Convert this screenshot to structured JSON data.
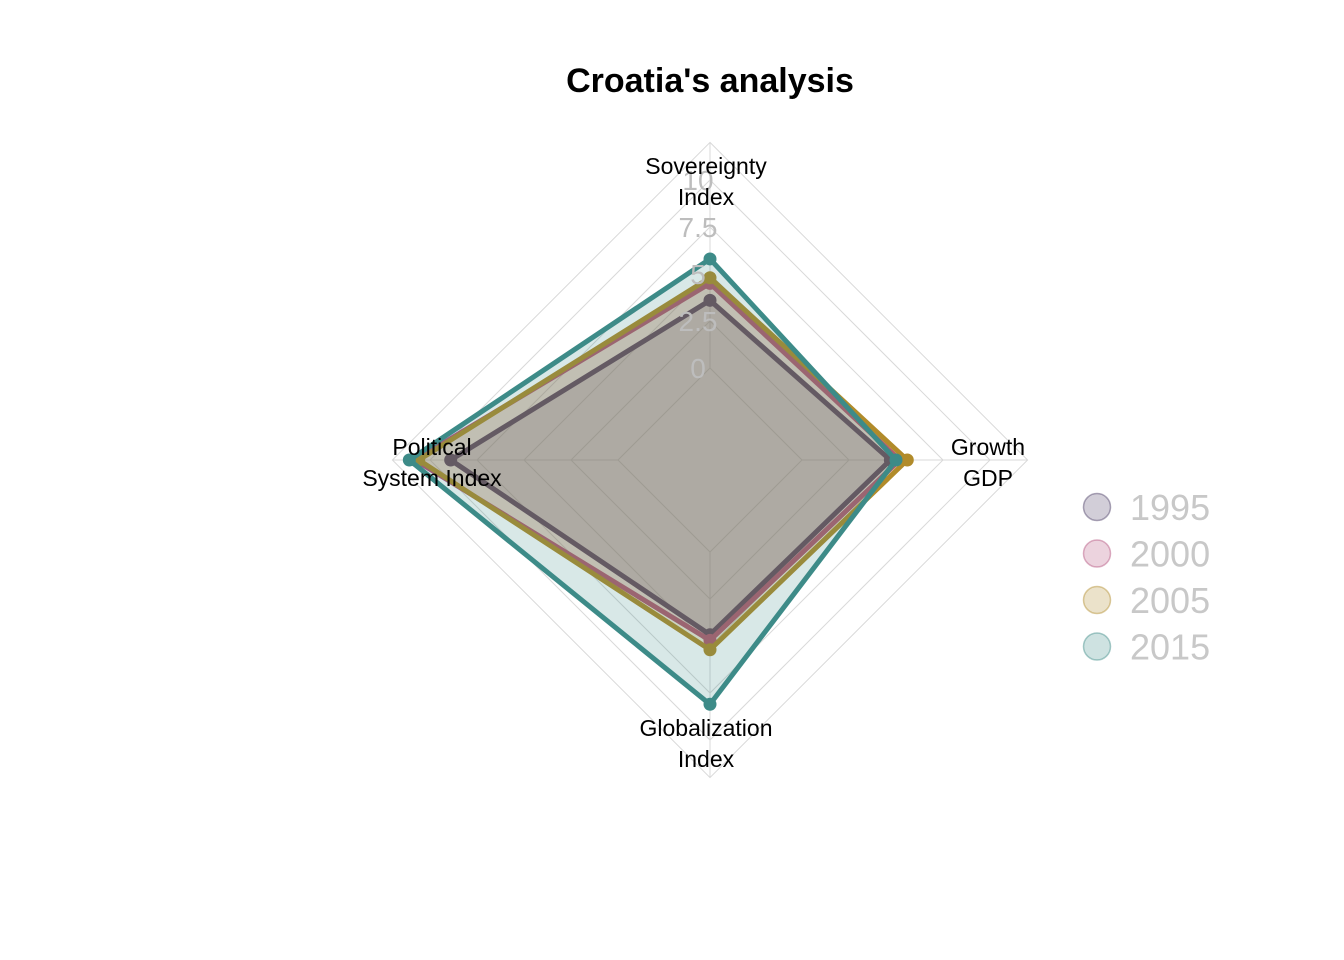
{
  "chart_data": {
    "type": "radar",
    "title": "Croatia's analysis",
    "axes": [
      {
        "lines": [
          "Sovereignty",
          "Index"
        ]
      },
      {
        "lines": [
          "Growth",
          "GDP"
        ]
      },
      {
        "lines": [
          "Globalization",
          "Index"
        ]
      },
      {
        "lines": [
          "Political",
          "System Index"
        ]
      }
    ],
    "rlim": [
      0,
      10
    ],
    "ticks": [
      "0",
      "2.5",
      "5",
      "7.5",
      "10"
    ],
    "tick_values": [
      0,
      2.5,
      5,
      7.5,
      10
    ],
    "grid": true,
    "legend_position": "right",
    "series": [
      {
        "name": "1995",
        "color": "#4a3b63",
        "values": [
          3.6,
          4.7,
          4.4,
          8.9
        ]
      },
      {
        "name": "2000",
        "color": "#b4507d",
        "values": [
          4.5,
          5.2,
          4.7,
          10.8
        ]
      },
      {
        "name": "2005",
        "color": "#b18b2a",
        "values": [
          4.8,
          5.6,
          5.2,
          10.6
        ]
      },
      {
        "name": "2015",
        "color": "#3d8b88",
        "values": [
          5.8,
          5.0,
          8.1,
          11.1
        ]
      }
    ]
  }
}
